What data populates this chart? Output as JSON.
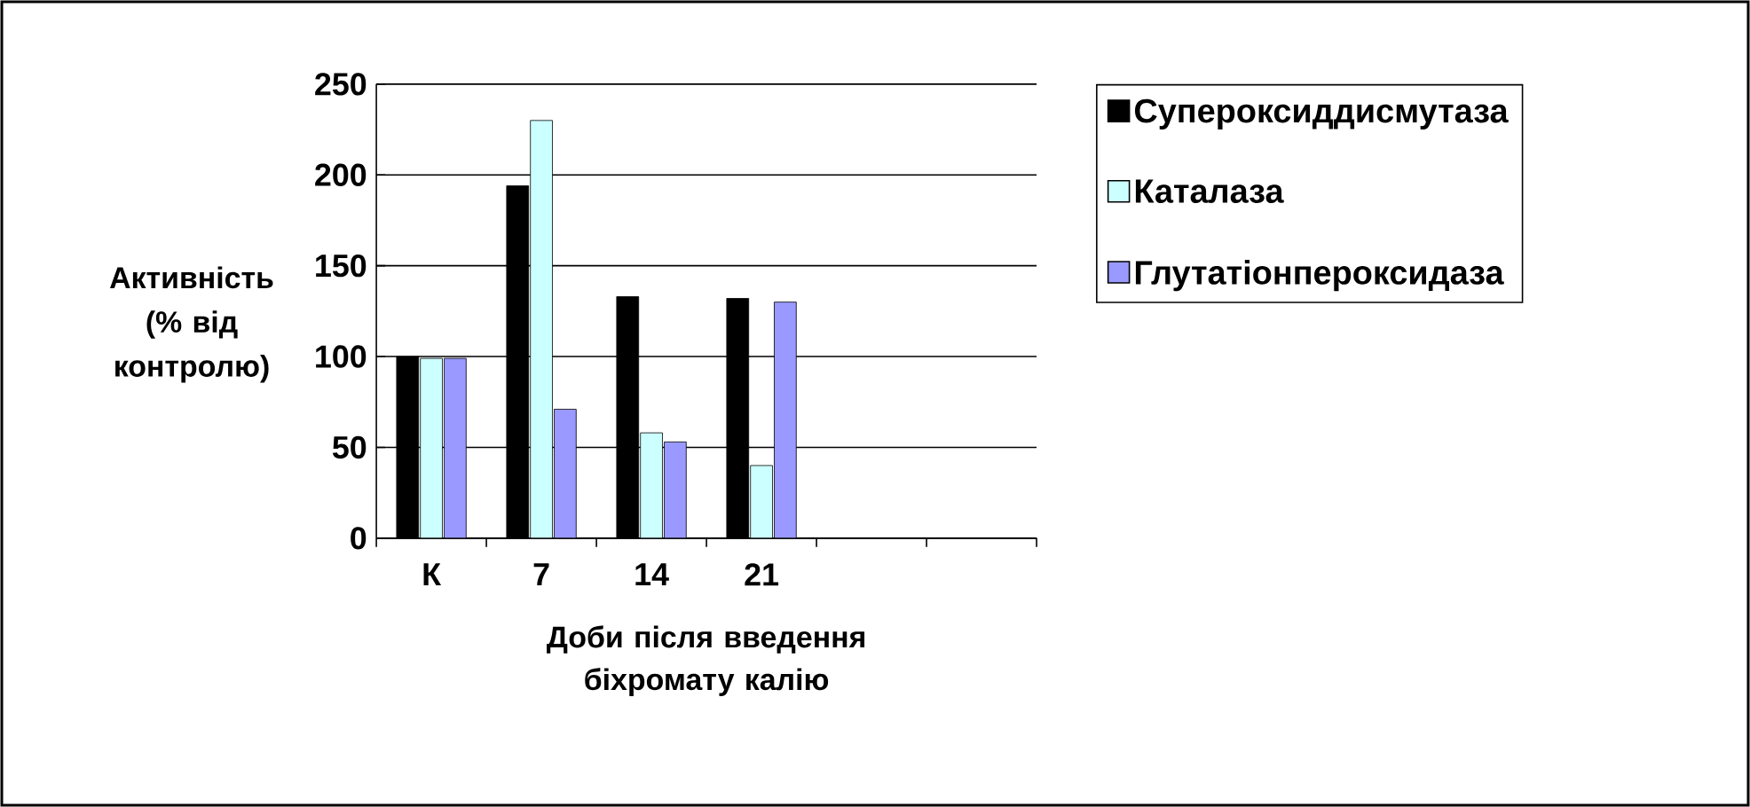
{
  "chart_data": {
    "type": "bar",
    "xlabel": "Доби після введення біхромату калію",
    "ylabel": "Активність (% від контролю)",
    "categories": [
      "К",
      "7",
      "14",
      "21",
      null,
      null
    ],
    "series": [
      {
        "name": "Супероксиддисмутаза",
        "color": "#000000",
        "values": [
          100,
          194,
          133,
          132,
          null,
          null
        ]
      },
      {
        "name": "Каталаза",
        "color": "#ccffff",
        "values": [
          99,
          230,
          58,
          40,
          null,
          null
        ]
      },
      {
        "name": "Глутатіонпероксидаза",
        "color": "#9999ff",
        "values": [
          99,
          71,
          53,
          130,
          null,
          null
        ]
      }
    ],
    "ylim": [
      0,
      250
    ],
    "yticks": [
      0,
      50,
      100,
      150,
      200,
      250
    ],
    "grid": "y",
    "legend": "right"
  }
}
